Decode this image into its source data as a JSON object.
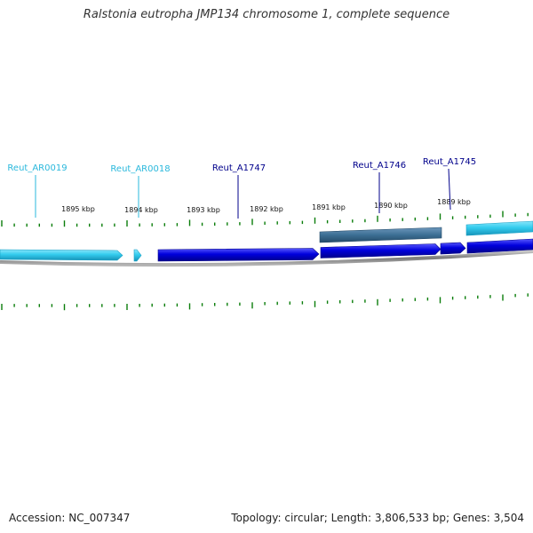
{
  "title": "Ralstonia eutropha JMP134 chromosome 1, complete sequence",
  "colors": {
    "rna": "#33ccee",
    "rna_dark": "#1a9fc4",
    "cds": "#0000dd",
    "cds_dark": "#00008a",
    "pseudo": "#3c6f94",
    "tick": "#0a7d0a",
    "backbone": "#888888",
    "label_rna": "#2ab8dc",
    "label_cds": "#00008b"
  },
  "scale_labels": [
    "1895 kbp",
    "1894 kbp",
    "1893 kbp",
    "1892 kbp",
    "1891 kbp",
    "1890 kbp",
    "1889 kbp"
  ],
  "features": [
    {
      "name": "Reut_AR0019",
      "kind": "rna"
    },
    {
      "name": "Reut_AR0018",
      "kind": "rna"
    },
    {
      "name": "Reut_A1747",
      "kind": "cds"
    },
    {
      "name": "Reut_A1746",
      "kind": "cds"
    },
    {
      "name": "Reut_A1745",
      "kind": "cds"
    }
  ],
  "footer": {
    "accession": "Accession: NC_007347",
    "summary": "Topology: circular; Length: 3,806,533 bp; Genes: 3,504"
  }
}
